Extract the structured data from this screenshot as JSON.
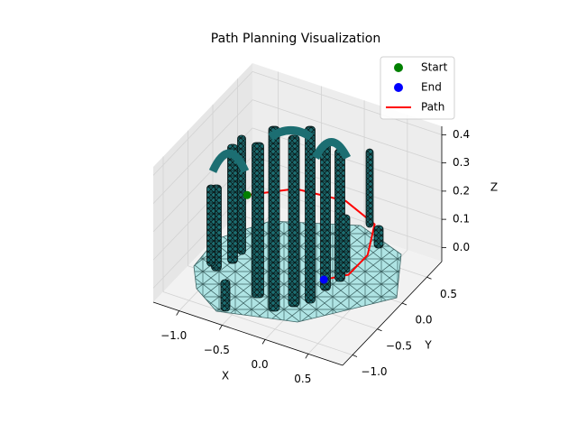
{
  "chart_data": {
    "type": "scatter3d",
    "title": "Path Planning Visualization",
    "xlabel": "X",
    "ylabel": "Y",
    "zlabel": "Z",
    "xlim": [
      -1.3,
      0.9
    ],
    "ylim": [
      -1.2,
      0.8
    ],
    "zlim": [
      -0.05,
      0.43
    ],
    "xticks": [
      {
        "value": -1,
        "label": "−1.0"
      },
      {
        "value": -0.5,
        "label": "−0.5"
      },
      {
        "value": 0,
        "label": "0.0"
      },
      0.5
    ],
    "yticks": [
      {
        "value": -1,
        "label": "−1.0"
      },
      {
        "value": -0.5,
        "label": "−0.5"
      },
      {
        "value": 0,
        "label": "0.0"
      },
      0.5
    ],
    "zticks": [
      {
        "value": 0,
        "label": "0.0"
      },
      0.1,
      0.2,
      0.3,
      0.4
    ],
    "grid": true,
    "legend": "upper right",
    "series": [
      {
        "name": "Start",
        "color": "green",
        "mode": "marker",
        "x": [
          -0.9
        ],
        "y": [
          0
        ],
        "z": [
          0.15
        ]
      },
      {
        "name": "End",
        "color": "blue",
        "mode": "marker",
        "x": [
          0.25
        ],
        "y": [
          -0.45
        ],
        "z": [
          0.05
        ]
      },
      {
        "name": "Path",
        "color": "red",
        "mode": "line",
        "x": [
          -0.9,
          -0.6,
          -0.1,
          0.35,
          0.5,
          0.45,
          0.25
        ],
        "y": [
          0,
          0.45,
          0.6,
          0.4,
          0,
          -0.3,
          -0.45
        ],
        "z": [
          0.15,
          0.12,
          0.1,
          0.1,
          0.08,
          0.06,
          0.05
        ]
      }
    ]
  }
}
